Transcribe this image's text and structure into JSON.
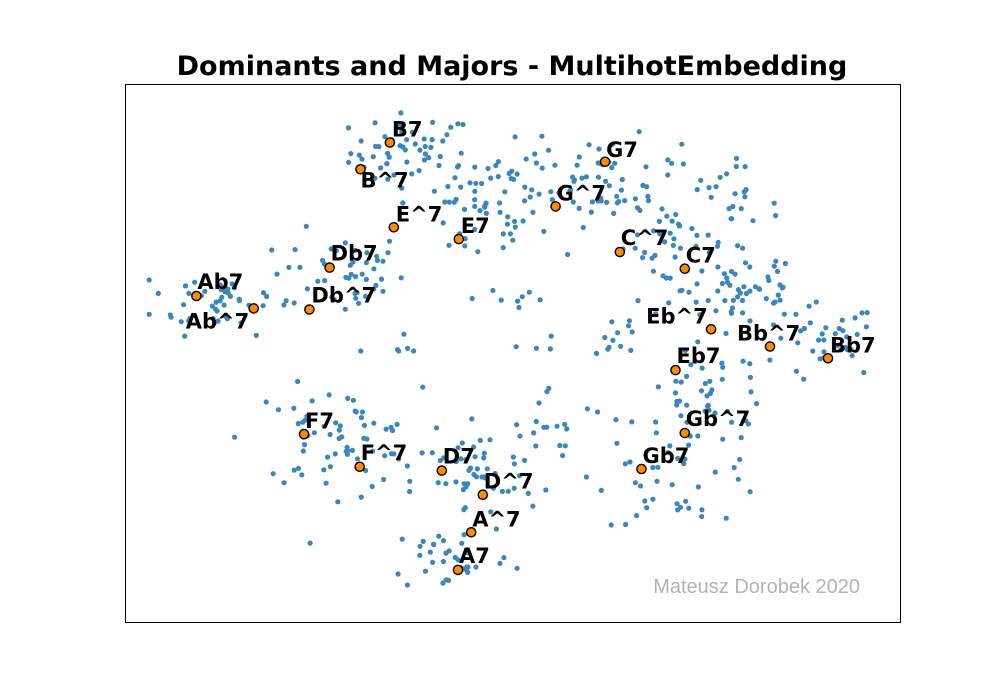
{
  "chart_data": {
    "type": "scatter",
    "title": "Dominants and Majors - MultihotEmbedding",
    "watermark": "Mateusz Dorobek 2020",
    "xlim": [
      0,
      100
    ],
    "ylim": [
      0,
      100
    ],
    "grid": false,
    "axis_ticks": false,
    "colors": {
      "background_points": "#3a87bd",
      "chord_points": "#ff8c00",
      "chord_edge": "#000000",
      "watermark": "#b3b3b3"
    },
    "background_clusters": [
      {
        "x": 37.0,
        "y": 87.5,
        "sx": 5.0,
        "sy": 4.5,
        "n": 55
      },
      {
        "x": 45.5,
        "y": 75.0,
        "sx": 5.0,
        "sy": 5.0,
        "n": 40
      },
      {
        "x": 28.0,
        "y": 65.0,
        "sx": 5.0,
        "sy": 5.0,
        "n": 45
      },
      {
        "x": 12.5,
        "y": 60.0,
        "sx": 6.0,
        "sy": 4.0,
        "n": 45
      },
      {
        "x": 50.5,
        "y": 84.0,
        "sx": 5.0,
        "sy": 3.5,
        "n": 25
      },
      {
        "x": 62.0,
        "y": 82.0,
        "sx": 6.0,
        "sy": 5.0,
        "n": 55
      },
      {
        "x": 70.0,
        "y": 70.0,
        "sx": 5.0,
        "sy": 6.0,
        "n": 40
      },
      {
        "x": 78.0,
        "y": 77.0,
        "sx": 4.0,
        "sy": 5.0,
        "n": 25
      },
      {
        "x": 80.0,
        "y": 62.0,
        "sx": 5.0,
        "sy": 5.0,
        "n": 50
      },
      {
        "x": 90.0,
        "y": 52.0,
        "sx": 4.5,
        "sy": 4.5,
        "n": 35
      },
      {
        "x": 76.0,
        "y": 42.0,
        "sx": 6.0,
        "sy": 6.0,
        "n": 45
      },
      {
        "x": 72.0,
        "y": 28.0,
        "sx": 7.0,
        "sy": 6.0,
        "n": 45
      },
      {
        "x": 27.0,
        "y": 34.0,
        "sx": 7.0,
        "sy": 6.0,
        "n": 70
      },
      {
        "x": 45.0,
        "y": 26.0,
        "sx": 5.0,
        "sy": 6.0,
        "n": 45
      },
      {
        "x": 42.0,
        "y": 12.0,
        "sx": 5.0,
        "sy": 4.0,
        "n": 35
      },
      {
        "x": 55.0,
        "y": 36.0,
        "sx": 5.0,
        "sy": 5.0,
        "n": 20
      },
      {
        "x": 50.0,
        "y": 60.0,
        "sx": 3.5,
        "sy": 3.0,
        "n": 8
      },
      {
        "x": 35.0,
        "y": 50.0,
        "sx": 2.0,
        "sy": 2.5,
        "n": 6
      },
      {
        "x": 53.0,
        "y": 52.0,
        "sx": 1.5,
        "sy": 1.5,
        "n": 4
      },
      {
        "x": 63.5,
        "y": 54.0,
        "sx": 2.0,
        "sy": 3.0,
        "n": 12
      }
    ],
    "chords": [
      {
        "label": "B7",
        "x": 34.1,
        "y": 89.3,
        "dx": 2,
        "dy": -6
      },
      {
        "label": "B^7",
        "x": 30.3,
        "y": 84.3,
        "dx": 0,
        "dy": 18
      },
      {
        "label": "E^7",
        "x": 34.6,
        "y": 73.5,
        "dx": 2,
        "dy": -6
      },
      {
        "label": "E7",
        "x": 43.0,
        "y": 71.3,
        "dx": 2,
        "dy": -6
      },
      {
        "label": "G7",
        "x": 61.9,
        "y": 85.7,
        "dx": 1,
        "dy": -5
      },
      {
        "label": "G^7",
        "x": 55.5,
        "y": 77.4,
        "dx": 1,
        "dy": -6
      },
      {
        "label": "C^7",
        "x": 63.8,
        "y": 68.9,
        "dx": 1,
        "dy": -7
      },
      {
        "label": "C7",
        "x": 72.2,
        "y": 65.8,
        "dx": 1,
        "dy": -6
      },
      {
        "label": "Db7",
        "x": 26.3,
        "y": 66.0,
        "dx": 1,
        "dy": -7
      },
      {
        "label": "Db^7",
        "x": 23.7,
        "y": 58.2,
        "dx": 2,
        "dy": -7
      },
      {
        "label": "Ab7",
        "x": 9.1,
        "y": 60.7,
        "dx": 1,
        "dy": -7
      },
      {
        "label": "Ab^7",
        "x": 16.5,
        "y": 58.4,
        "dx": -68,
        "dy": 20
      },
      {
        "label": "Eb^7",
        "x": 75.6,
        "y": 54.5,
        "dx": -65,
        "dy": -6
      },
      {
        "label": "Bb^7",
        "x": 83.2,
        "y": 51.3,
        "dx": -33,
        "dy": -6
      },
      {
        "label": "Bb7",
        "x": 90.7,
        "y": 49.1,
        "dx": 2,
        "dy": -6
      },
      {
        "label": "Eb7",
        "x": 71.0,
        "y": 46.9,
        "dx": 1,
        "dy": -7
      },
      {
        "label": "Gb^7",
        "x": 72.2,
        "y": 35.2,
        "dx": 1,
        "dy": -7
      },
      {
        "label": "Gb7",
        "x": 66.6,
        "y": 28.5,
        "dx": 1,
        "dy": -6
      },
      {
        "label": "F7",
        "x": 23.0,
        "y": 35.0,
        "dx": 1,
        "dy": -6
      },
      {
        "label": "F^7",
        "x": 30.2,
        "y": 28.9,
        "dx": 1,
        "dy": -7
      },
      {
        "label": "D7",
        "x": 40.8,
        "y": 28.2,
        "dx": 1,
        "dy": -7
      },
      {
        "label": "D^7",
        "x": 46.1,
        "y": 23.7,
        "dx": 1,
        "dy": -6
      },
      {
        "label": "A^7",
        "x": 44.6,
        "y": 16.7,
        "dx": 1,
        "dy": -6
      },
      {
        "label": "A7",
        "x": 42.9,
        "y": 9.7,
        "dx": 1,
        "dy": -7
      }
    ]
  }
}
